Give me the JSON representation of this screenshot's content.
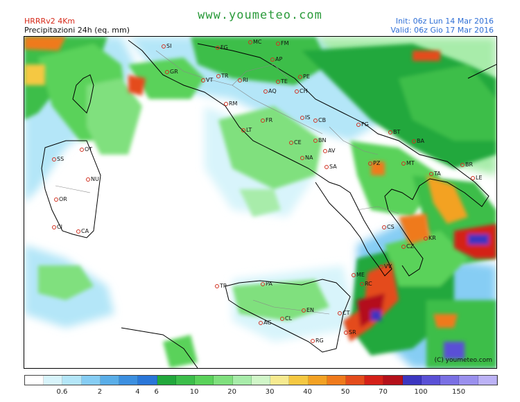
{
  "header": {
    "model": "HRRRv2  4Km",
    "product": "Precipitazioni 24h (eq. mm)",
    "site": "www.youmeteo.com",
    "init": "Init: 06z Lun  14 Mar 2016",
    "valid": "Valid: 06z Gio  17 Mar 2016"
  },
  "map": {
    "copyright": "(C) youmeteo.com",
    "cities": [
      "SI",
      "FG2",
      "MC",
      "FM",
      "GR",
      "AP",
      "VT",
      "TR",
      "RI",
      "TE",
      "PE",
      "AQ",
      "CH",
      "RM",
      "IS",
      "CB",
      "FR",
      "LT",
      "FG",
      "BT",
      "CE",
      "BN",
      "BA",
      "SS",
      "OT",
      "NA",
      "AV",
      "SA",
      "PZ",
      "MT",
      "BR",
      "TA",
      "NU",
      "LE",
      "OR",
      "CS",
      "KR",
      "CI",
      "CA",
      "CZ",
      "VV",
      "ME",
      "RC",
      "TP",
      "PA",
      "EN",
      "CT",
      "CL",
      "AG",
      "SR",
      "RG"
    ],
    "city_labels": {
      "SI": "SI",
      "FG2": "FG",
      "MC": "MC",
      "FM": "FM",
      "GR": "GR",
      "AP": "AP",
      "VT": "VT",
      "TR": "TR",
      "RI": "RI",
      "TE": "TE",
      "PE": "PE",
      "AQ": "AQ",
      "CH": "CH",
      "RM": "RM",
      "IS": "IS",
      "CB": "CB",
      "FR": "FR",
      "LT": "LT",
      "FG": "FG",
      "BT": "BT",
      "CE": "CE",
      "BN": "BN",
      "BA": "BA",
      "SS": "SS",
      "OT": "OT",
      "NA": "NA",
      "AV": "AV",
      "SA": "SA",
      "PZ": "PZ",
      "MT": "MT",
      "BR": "BR",
      "TA": "TA",
      "NU": "NU",
      "LE": "LE",
      "OR": "OR",
      "CS": "CS",
      "KR": "KR",
      "CI": "CI",
      "CA": "CA",
      "CZ": "CZ",
      "VV": "VV",
      "ME": "ME",
      "RC": "RC",
      "TP": "TP",
      "PA": "PA",
      "EN": "EN",
      "CT": "CT",
      "CL": "CL",
      "AG": "AG",
      "SR": "SR",
      "RG": "RG"
    }
  },
  "legend": {
    "unit": "mm",
    "colors": [
      "#ffffff",
      "#d8f4fb",
      "#b4e6f8",
      "#86cdf4",
      "#5aaee8",
      "#3c8fe0",
      "#2a76d8",
      "#22a83c",
      "#3cbe4a",
      "#5ad25a",
      "#80e07e",
      "#a8ecaa",
      "#d0f6c8",
      "#f6ea90",
      "#f5c842",
      "#f3a224",
      "#ef7a1c",
      "#e44c1c",
      "#d42018",
      "#b4101a",
      "#3c36c0",
      "#5a50d6",
      "#7a70e4",
      "#9a90ee",
      "#bcb2f6"
    ],
    "ticks": [
      "0.6",
      "2",
      "4",
      "6",
      "10",
      "20",
      "30",
      "40",
      "50",
      "70",
      "100",
      "150"
    ]
  }
}
